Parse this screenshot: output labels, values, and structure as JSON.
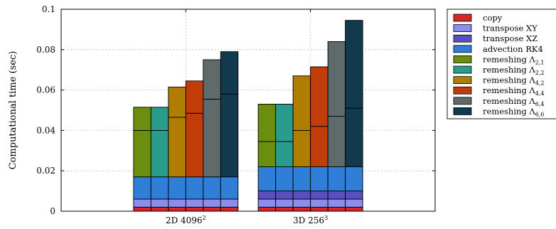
{
  "chart_data": {
    "type": "bar",
    "stacked": true,
    "ylabel": "Computational time (sec)",
    "ylim": [
      0,
      0.1
    ],
    "yticks": [
      0,
      0.02,
      0.04,
      0.06,
      0.08,
      0.1
    ],
    "ytick_labels": [
      "0",
      "0.02",
      "0.04",
      "0.06",
      "0.08",
      "0.1"
    ],
    "grid": true,
    "legend_position": "outside-right",
    "groups": [
      {
        "label": "2D 4096",
        "label_sup": "2",
        "bars": [
          {
            "remeshing": "remeshing Λ2,1",
            "segments": {
              "copy": 0.002,
              "transpose XY": 0.004,
              "transpose XZ": 0.0,
              "advection RK4": 0.011,
              "remeshing_lower": 0.023,
              "remeshing_upper": 0.0115
            }
          },
          {
            "remeshing": "remeshing Λ2,2",
            "segments": {
              "copy": 0.002,
              "transpose XY": 0.004,
              "transpose XZ": 0.0,
              "advection RK4": 0.011,
              "remeshing_lower": 0.023,
              "remeshing_upper": 0.0115
            }
          },
          {
            "remeshing": "remeshing Λ4,2",
            "segments": {
              "copy": 0.002,
              "transpose XY": 0.004,
              "transpose XZ": 0.0,
              "advection RK4": 0.011,
              "remeshing_lower": 0.0295,
              "remeshing_upper": 0.015
            }
          },
          {
            "remeshing": "remeshing Λ4,4",
            "segments": {
              "copy": 0.002,
              "transpose XY": 0.004,
              "transpose XZ": 0.0,
              "advection RK4": 0.011,
              "remeshing_lower": 0.0315,
              "remeshing_upper": 0.016
            }
          },
          {
            "remeshing": "remeshing Λ6,4",
            "segments": {
              "copy": 0.002,
              "transpose XY": 0.004,
              "transpose XZ": 0.0,
              "advection RK4": 0.011,
              "remeshing_lower": 0.0385,
              "remeshing_upper": 0.0195
            }
          },
          {
            "remeshing": "remeshing Λ6,6",
            "segments": {
              "copy": 0.002,
              "transpose XY": 0.004,
              "transpose XZ": 0.0,
              "advection RK4": 0.011,
              "remeshing_lower": 0.041,
              "remeshing_upper": 0.021
            }
          }
        ]
      },
      {
        "label": "3D 256",
        "label_sup": "3",
        "bars": [
          {
            "remeshing": "remeshing Λ2,1",
            "segments": {
              "copy": 0.002,
              "transpose XY": 0.004,
              "transpose XZ": 0.004,
              "advection RK4": 0.012,
              "remeshing_lower": 0.0125,
              "remeshing_upper": 0.0185
            }
          },
          {
            "remeshing": "remeshing Λ2,2",
            "segments": {
              "copy": 0.002,
              "transpose XY": 0.004,
              "transpose XZ": 0.004,
              "advection RK4": 0.012,
              "remeshing_lower": 0.0125,
              "remeshing_upper": 0.0185
            }
          },
          {
            "remeshing": "remeshing Λ4,2",
            "segments": {
              "copy": 0.002,
              "transpose XY": 0.004,
              "transpose XZ": 0.004,
              "advection RK4": 0.012,
              "remeshing_lower": 0.018,
              "remeshing_upper": 0.027
            }
          },
          {
            "remeshing": "remeshing Λ4,4",
            "segments": {
              "copy": 0.002,
              "transpose XY": 0.004,
              "transpose XZ": 0.004,
              "advection RK4": 0.012,
              "remeshing_lower": 0.02,
              "remeshing_upper": 0.0295
            }
          },
          {
            "remeshing": "remeshing Λ6,4",
            "segments": {
              "copy": 0.002,
              "transpose XY": 0.004,
              "transpose XZ": 0.004,
              "advection RK4": 0.012,
              "remeshing_lower": 0.025,
              "remeshing_upper": 0.037
            }
          },
          {
            "remeshing": "remeshing Λ6,6",
            "segments": {
              "copy": 0.002,
              "transpose XY": 0.004,
              "transpose XZ": 0.004,
              "advection RK4": 0.012,
              "remeshing_lower": 0.029,
              "remeshing_upper": 0.0435
            }
          }
        ]
      }
    ],
    "series": [
      {
        "name": "copy",
        "display": "copy",
        "sub": "",
        "color": "#d62728"
      },
      {
        "name": "transpose XY",
        "display": "transpose XY",
        "sub": "",
        "color": "#8c8cf0"
      },
      {
        "name": "transpose XZ",
        "display": "transpose XZ",
        "sub": "",
        "color": "#5a4fc0"
      },
      {
        "name": "advection RK4",
        "display": "advection RK4",
        "sub": "",
        "color": "#2f7fd8"
      },
      {
        "name": "remeshing Λ2,1",
        "display": "remeshing Λ",
        "sub": "2,1",
        "color": "#6b8e0e"
      },
      {
        "name": "remeshing Λ2,2",
        "display": "remeshing Λ",
        "sub": "2,2",
        "color": "#2a9c8c"
      },
      {
        "name": "remeshing Λ4,2",
        "display": "remeshing Λ",
        "sub": "4,2",
        "color": "#b07d00"
      },
      {
        "name": "remeshing Λ4,4",
        "display": "remeshing Λ",
        "sub": "4,4",
        "color": "#c23c0a"
      },
      {
        "name": "remeshing Λ6,4",
        "display": "remeshing Λ",
        "sub": "6,4",
        "color": "#5f6b6b"
      },
      {
        "name": "remeshing Λ6,6",
        "display": "remeshing Λ",
        "sub": "6,6",
        "color": "#113a4e"
      }
    ]
  }
}
